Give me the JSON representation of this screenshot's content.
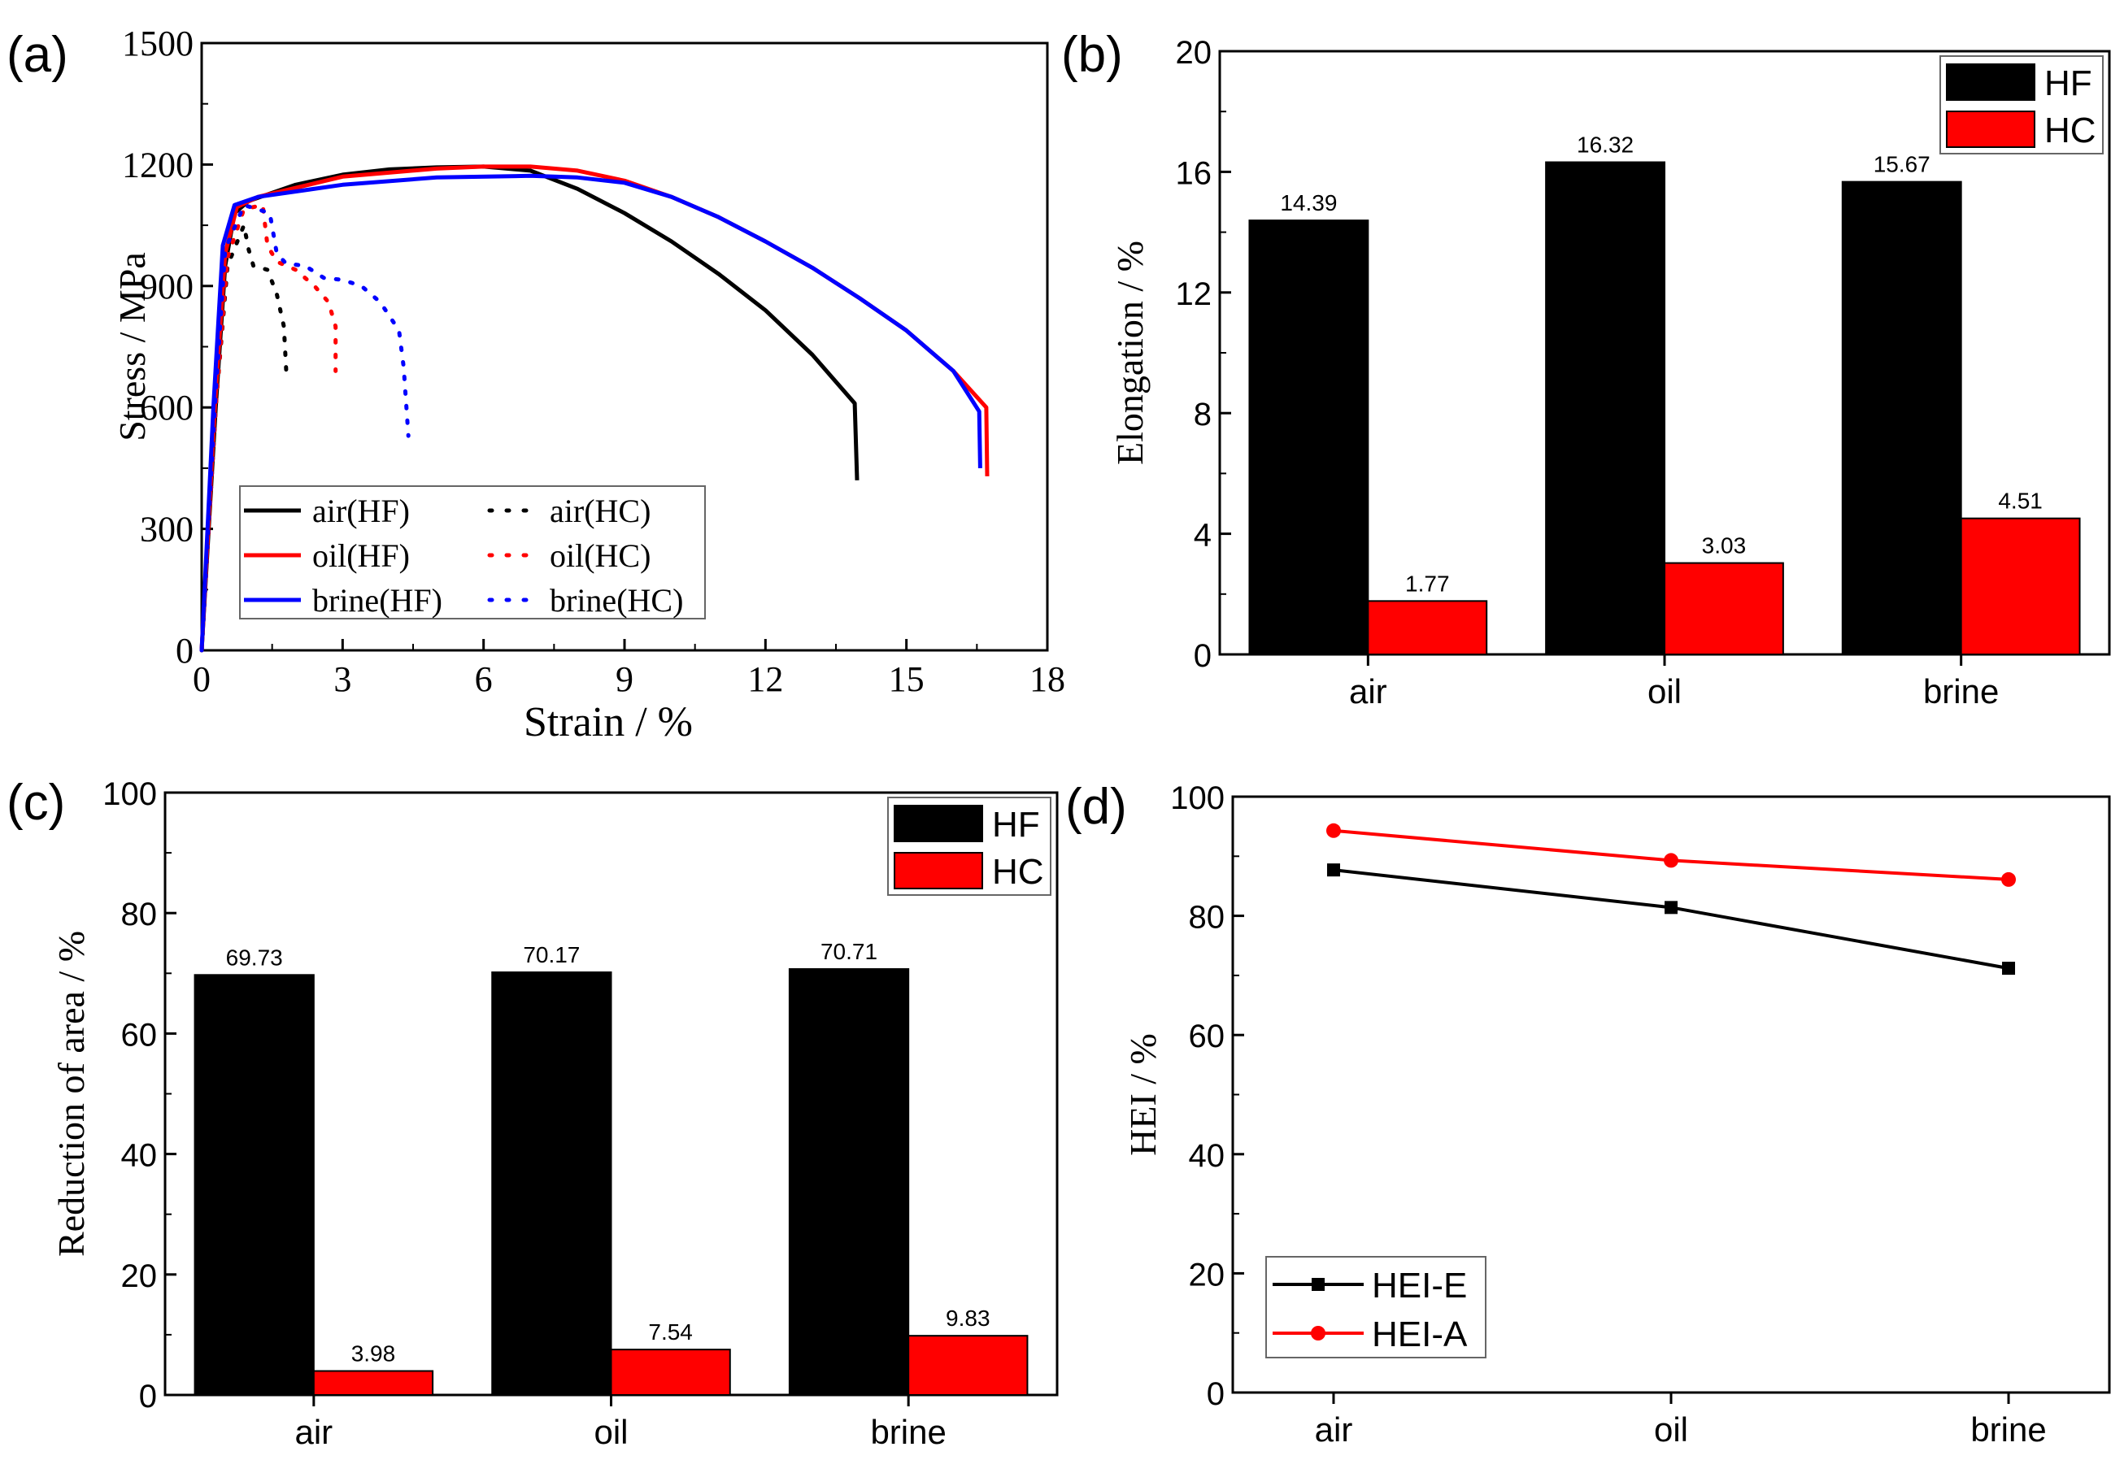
{
  "chart_data": [
    {
      "panel_label": "(a)",
      "type": "line",
      "xlabel": "Strain / %",
      "ylabel": "Stress / MPa",
      "xlim": [
        0,
        18
      ],
      "ylim": [
        0,
        1500
      ],
      "xticks": [
        0,
        3,
        6,
        9,
        12,
        15,
        18
      ],
      "yticks": [
        0,
        300,
        600,
        900,
        1200,
        1500
      ],
      "grid": false,
      "legend_position": "bottom-left",
      "series": [
        {
          "name": "air(HF)",
          "color": "#000000",
          "style": "solid",
          "points": [
            [
              0,
              0
            ],
            [
              0.3,
              600
            ],
            [
              0.5,
              950
            ],
            [
              0.7,
              1080
            ],
            [
              1,
              1110
            ],
            [
              2,
              1150
            ],
            [
              3,
              1175
            ],
            [
              4,
              1188
            ],
            [
              5,
              1193
            ],
            [
              6,
              1195
            ],
            [
              7,
              1185
            ],
            [
              8,
              1140
            ],
            [
              9,
              1080
            ],
            [
              10,
              1010
            ],
            [
              11,
              930
            ],
            [
              12,
              840
            ],
            [
              13,
              730
            ],
            [
              13.9,
              610
            ],
            [
              13.95,
              420
            ]
          ]
        },
        {
          "name": "oil(HF)",
          "color": "#ff0000",
          "style": "solid",
          "points": [
            [
              0,
              0
            ],
            [
              0.28,
              600
            ],
            [
              0.5,
              980
            ],
            [
              0.75,
              1095
            ],
            [
              1.2,
              1120
            ],
            [
              3,
              1170
            ],
            [
              5,
              1190
            ],
            [
              6,
              1195
            ],
            [
              7,
              1195
            ],
            [
              8,
              1185
            ],
            [
              9,
              1160
            ],
            [
              10,
              1120
            ],
            [
              11,
              1070
            ],
            [
              12,
              1010
            ],
            [
              13,
              945
            ],
            [
              14,
              870
            ],
            [
              15,
              790
            ],
            [
              16,
              690
            ],
            [
              16.7,
              600
            ],
            [
              16.72,
              430
            ]
          ]
        },
        {
          "name": "brine(HF)",
          "color": "#0000ff",
          "style": "solid",
          "points": [
            [
              0,
              0
            ],
            [
              0.25,
              600
            ],
            [
              0.45,
              1000
            ],
            [
              0.7,
              1100
            ],
            [
              1.2,
              1120
            ],
            [
              3,
              1150
            ],
            [
              5,
              1168
            ],
            [
              7,
              1172
            ],
            [
              8,
              1168
            ],
            [
              9,
              1155
            ],
            [
              10,
              1120
            ],
            [
              11,
              1070
            ],
            [
              12,
              1010
            ],
            [
              13,
              945
            ],
            [
              14,
              870
            ],
            [
              15,
              790
            ],
            [
              16,
              690
            ],
            [
              16.55,
              590
            ],
            [
              16.57,
              450
            ]
          ]
        },
        {
          "name": "air(HC)",
          "color": "#000000",
          "style": "dotted",
          "points": [
            [
              0,
              0
            ],
            [
              0.3,
              600
            ],
            [
              0.55,
              950
            ],
            [
              0.9,
              1050
            ],
            [
              1.0,
              990
            ],
            [
              1.1,
              950
            ],
            [
              1.4,
              940
            ],
            [
              1.6,
              880
            ],
            [
              1.75,
              800
            ],
            [
              1.8,
              690
            ]
          ]
        },
        {
          "name": "oil(HC)",
          "color": "#ff0000",
          "style": "dotted",
          "points": [
            [
              0,
              0
            ],
            [
              0.3,
              600
            ],
            [
              0.55,
              970
            ],
            [
              0.9,
              1090
            ],
            [
              1.3,
              1100
            ],
            [
              1.4,
              1000
            ],
            [
              1.6,
              960
            ],
            [
              2,
              940
            ],
            [
              2.4,
              900
            ],
            [
              2.7,
              860
            ],
            [
              2.85,
              800
            ],
            [
              2.85,
              690
            ]
          ]
        },
        {
          "name": "brine(HC)",
          "color": "#0000ff",
          "style": "dotted",
          "points": [
            [
              0,
              0
            ],
            [
              0.28,
              600
            ],
            [
              0.5,
              990
            ],
            [
              0.9,
              1100
            ],
            [
              1.45,
              1080
            ],
            [
              1.6,
              980
            ],
            [
              1.8,
              955
            ],
            [
              2.2,
              950
            ],
            [
              2.6,
              920
            ],
            [
              3,
              915
            ],
            [
              3.4,
              900
            ],
            [
              3.8,
              860
            ],
            [
              4.2,
              790
            ],
            [
              4.3,
              700
            ],
            [
              4.4,
              530
            ]
          ]
        }
      ]
    },
    {
      "panel_label": "(b)",
      "type": "bar",
      "ylabel": "Elongation / %",
      "ylim": [
        0,
        20
      ],
      "yticks": [
        0,
        4,
        8,
        12,
        16,
        20
      ],
      "categories": [
        "air",
        "oil",
        "brine"
      ],
      "legend_position": "top-right",
      "series": [
        {
          "name": "HF",
          "color": "#000000",
          "values": [
            14.39,
            16.32,
            15.67
          ],
          "labels": [
            "14.39",
            "16.32",
            "15.67"
          ]
        },
        {
          "name": "HC",
          "color": "#ff0000",
          "values": [
            1.77,
            3.03,
            4.51
          ],
          "labels": [
            "1.77",
            "3.03",
            "4.51"
          ]
        }
      ]
    },
    {
      "panel_label": "(c)",
      "type": "bar",
      "ylabel": "Reduction of area / %",
      "ylim": [
        0,
        100
      ],
      "yticks": [
        0,
        20,
        40,
        60,
        80,
        100
      ],
      "categories": [
        "air",
        "oil",
        "brine"
      ],
      "legend_position": "top-right",
      "series": [
        {
          "name": "HF",
          "color": "#000000",
          "values": [
            69.73,
            70.17,
            70.71
          ],
          "labels": [
            "69.73",
            "70.17",
            "70.71"
          ]
        },
        {
          "name": "HC",
          "color": "#ff0000",
          "values": [
            3.98,
            7.54,
            9.83
          ],
          "labels": [
            "3.98",
            "7.54",
            "9.83"
          ]
        }
      ]
    },
    {
      "panel_label": "(d)",
      "type": "line",
      "ylabel": "HEI / %",
      "ylim": [
        0,
        100
      ],
      "yticks": [
        0,
        20,
        40,
        60,
        80,
        100
      ],
      "categories": [
        "air",
        "oil",
        "brine"
      ],
      "legend_position": "bottom-left",
      "series": [
        {
          "name": "HEI-E",
          "color": "#000000",
          "marker": "square",
          "values": [
            87.7,
            81.4,
            71.2
          ]
        },
        {
          "name": "HEI-A",
          "color": "#ff0000",
          "marker": "circle",
          "values": [
            94.3,
            89.3,
            86.1
          ]
        }
      ]
    }
  ]
}
